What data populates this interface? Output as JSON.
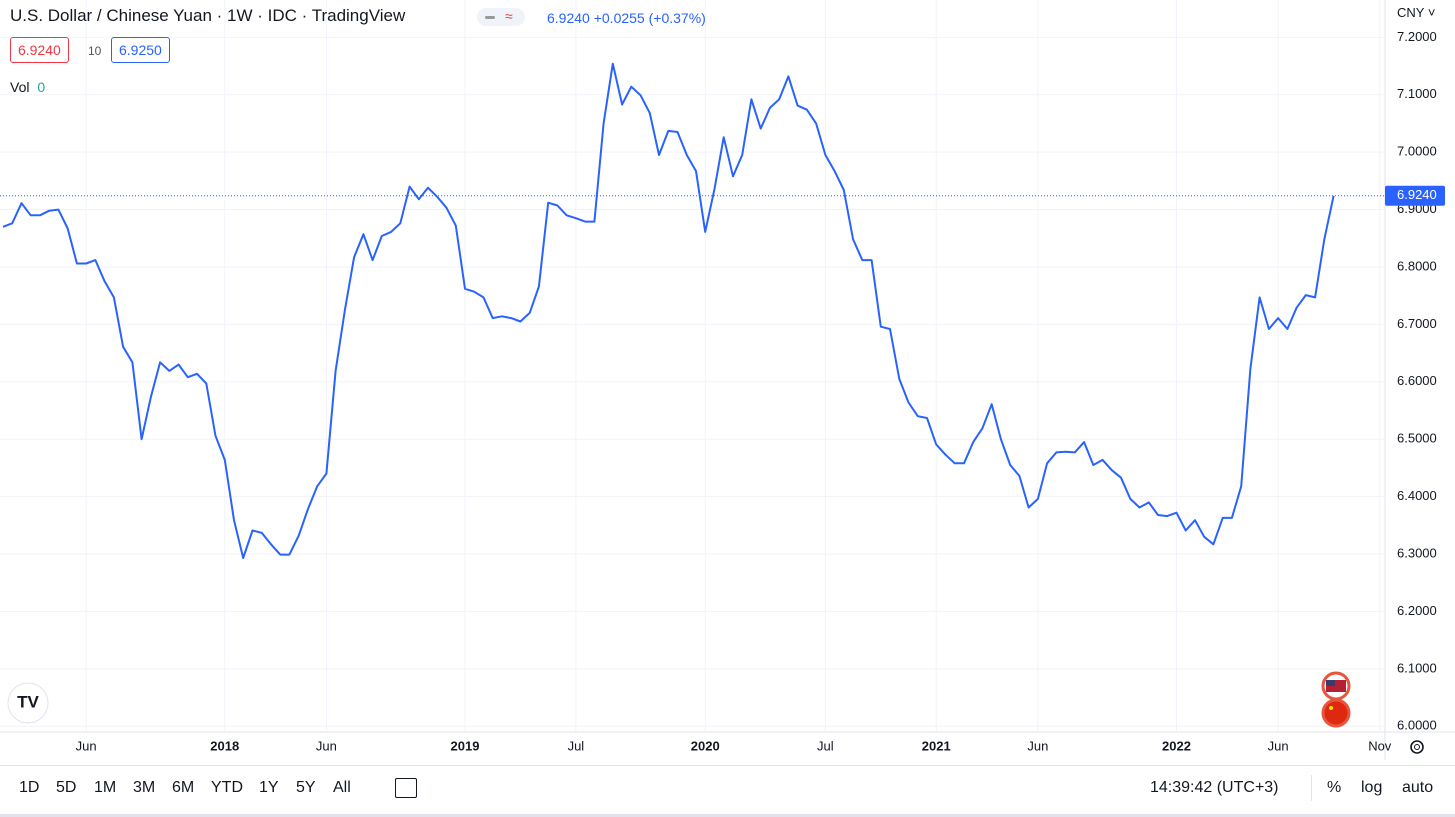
{
  "header": {
    "title": "U.S. Dollar / Chinese Yuan · 1W · IDC · TradingView",
    "last": "6.9240",
    "change": "+0.0255",
    "change_pct": "(+0.37%)",
    "sell": "6.9240",
    "spread": "10",
    "buy": "6.9250",
    "vol_label": "Vol",
    "vol_value": "0",
    "currency": "CNY"
  },
  "chart_data": {
    "type": "line",
    "color": "#2962ff",
    "grid": true,
    "categories": [
      null,
      null,
      null,
      null,
      null,
      null,
      null,
      null,
      null,
      "Jun",
      null,
      null,
      null,
      null,
      null,
      null,
      null,
      null,
      null,
      null,
      null,
      null,
      null,
      null,
      "2018",
      null,
      null,
      null,
      null,
      null,
      null,
      null,
      null,
      null,
      null,
      "Jun",
      null,
      null,
      null,
      null,
      null,
      null,
      null,
      null,
      null,
      null,
      null,
      null,
      null,
      null,
      "2019",
      null,
      null,
      null,
      null,
      null,
      null,
      null,
      null,
      null,
      null,
      null,
      "Jul",
      null,
      null,
      null,
      null,
      null,
      null,
      null,
      null,
      null,
      null,
      null,
      null,
      null,
      "2020",
      null,
      null,
      null,
      null,
      null,
      null,
      null,
      null,
      null,
      null,
      null,
      null,
      "Jul",
      null,
      null,
      null,
      null,
      null,
      null,
      null,
      null,
      null,
      null,
      null,
      "2021",
      null,
      null,
      null,
      null,
      null,
      null,
      null,
      null,
      null,
      null,
      "Jun",
      null,
      null,
      null,
      null,
      null,
      null,
      null,
      null,
      null,
      null,
      null,
      null,
      null,
      null,
      "2022",
      null,
      null,
      null,
      null,
      null,
      null,
      null,
      null,
      null,
      null,
      "Jun",
      null,
      null,
      null,
      null,
      null,
      null,
      null,
      null,
      null,
      null,
      "Nov"
    ],
    "values": [
      6.87,
      6.876,
      6.911,
      6.89,
      6.89,
      6.898,
      6.9,
      6.867,
      6.806,
      6.806,
      6.812,
      6.775,
      6.747,
      6.661,
      6.634,
      6.5,
      6.573,
      6.634,
      6.619,
      6.63,
      6.608,
      6.614,
      6.597,
      6.506,
      6.464,
      6.359,
      6.293,
      6.341,
      6.337,
      6.317,
      6.299,
      6.299,
      6.332,
      6.378,
      6.418,
      6.44,
      6.619,
      6.725,
      6.817,
      6.857,
      6.812,
      6.854,
      6.861,
      6.876,
      6.94,
      6.918,
      6.938,
      6.922,
      6.903,
      6.872,
      6.762,
      6.757,
      6.747,
      6.711,
      6.714,
      6.711,
      6.705,
      6.72,
      6.766,
      6.912,
      6.907,
      6.89,
      6.885,
      6.879,
      6.879,
      7.05,
      7.154,
      7.083,
      7.114,
      7.099,
      7.068,
      6.995,
      7.037,
      7.035,
      6.995,
      6.967,
      6.861,
      6.936,
      7.026,
      6.958,
      6.995,
      7.092,
      7.041,
      7.077,
      7.092,
      7.132,
      7.081,
      7.074,
      7.05,
      6.995,
      6.967,
      6.934,
      6.848,
      6.812,
      6.812,
      6.696,
      6.692,
      6.605,
      6.564,
      6.54,
      6.537,
      6.491,
      6.473,
      6.458,
      6.458,
      6.495,
      6.519,
      6.561,
      6.5,
      6.455,
      6.436,
      6.381,
      6.396,
      6.458,
      6.477,
      6.478,
      6.477,
      6.495,
      6.455,
      6.464,
      6.446,
      6.433,
      6.396,
      6.381,
      6.39,
      6.368,
      6.366,
      6.372,
      6.341,
      6.359,
      6.33,
      6.317,
      6.363,
      6.363,
      6.418,
      6.623,
      6.747,
      6.692,
      6.711,
      6.692,
      6.729,
      6.751,
      6.747,
      6.848,
      6.924,
      null,
      null,
      null,
      null,
      null
    ],
    "ylim": [
      5.99,
      7.265
    ],
    "yticks": [
      {
        "value": 6.0,
        "label": "6.0000"
      },
      {
        "value": 6.1,
        "label": "6.1000"
      },
      {
        "value": 6.2,
        "label": "6.2000"
      },
      {
        "value": 6.3,
        "label": "6.3000"
      },
      {
        "value": 6.4,
        "label": "6.4000"
      },
      {
        "value": 6.5,
        "label": "6.5000"
      },
      {
        "value": 6.6,
        "label": "6.6000"
      },
      {
        "value": 6.7,
        "label": "6.7000"
      },
      {
        "value": 6.8,
        "label": "6.8000"
      },
      {
        "value": 6.9,
        "label": "6.9000"
      },
      {
        "value": 7.0,
        "label": "7.0000"
      },
      {
        "value": 7.1,
        "label": "7.1000"
      },
      {
        "value": 7.2,
        "label": "7.2000"
      }
    ],
    "last_price": {
      "value": 6.924,
      "label": "6.9240"
    }
  },
  "toolbar": {
    "ranges": [
      "1D",
      "5D",
      "1M",
      "3M",
      "6M",
      "YTD",
      "1Y",
      "5Y",
      "All"
    ],
    "clock": "14:39:42 (UTC+3)",
    "percent": "%",
    "log": "log",
    "auto": "auto"
  }
}
